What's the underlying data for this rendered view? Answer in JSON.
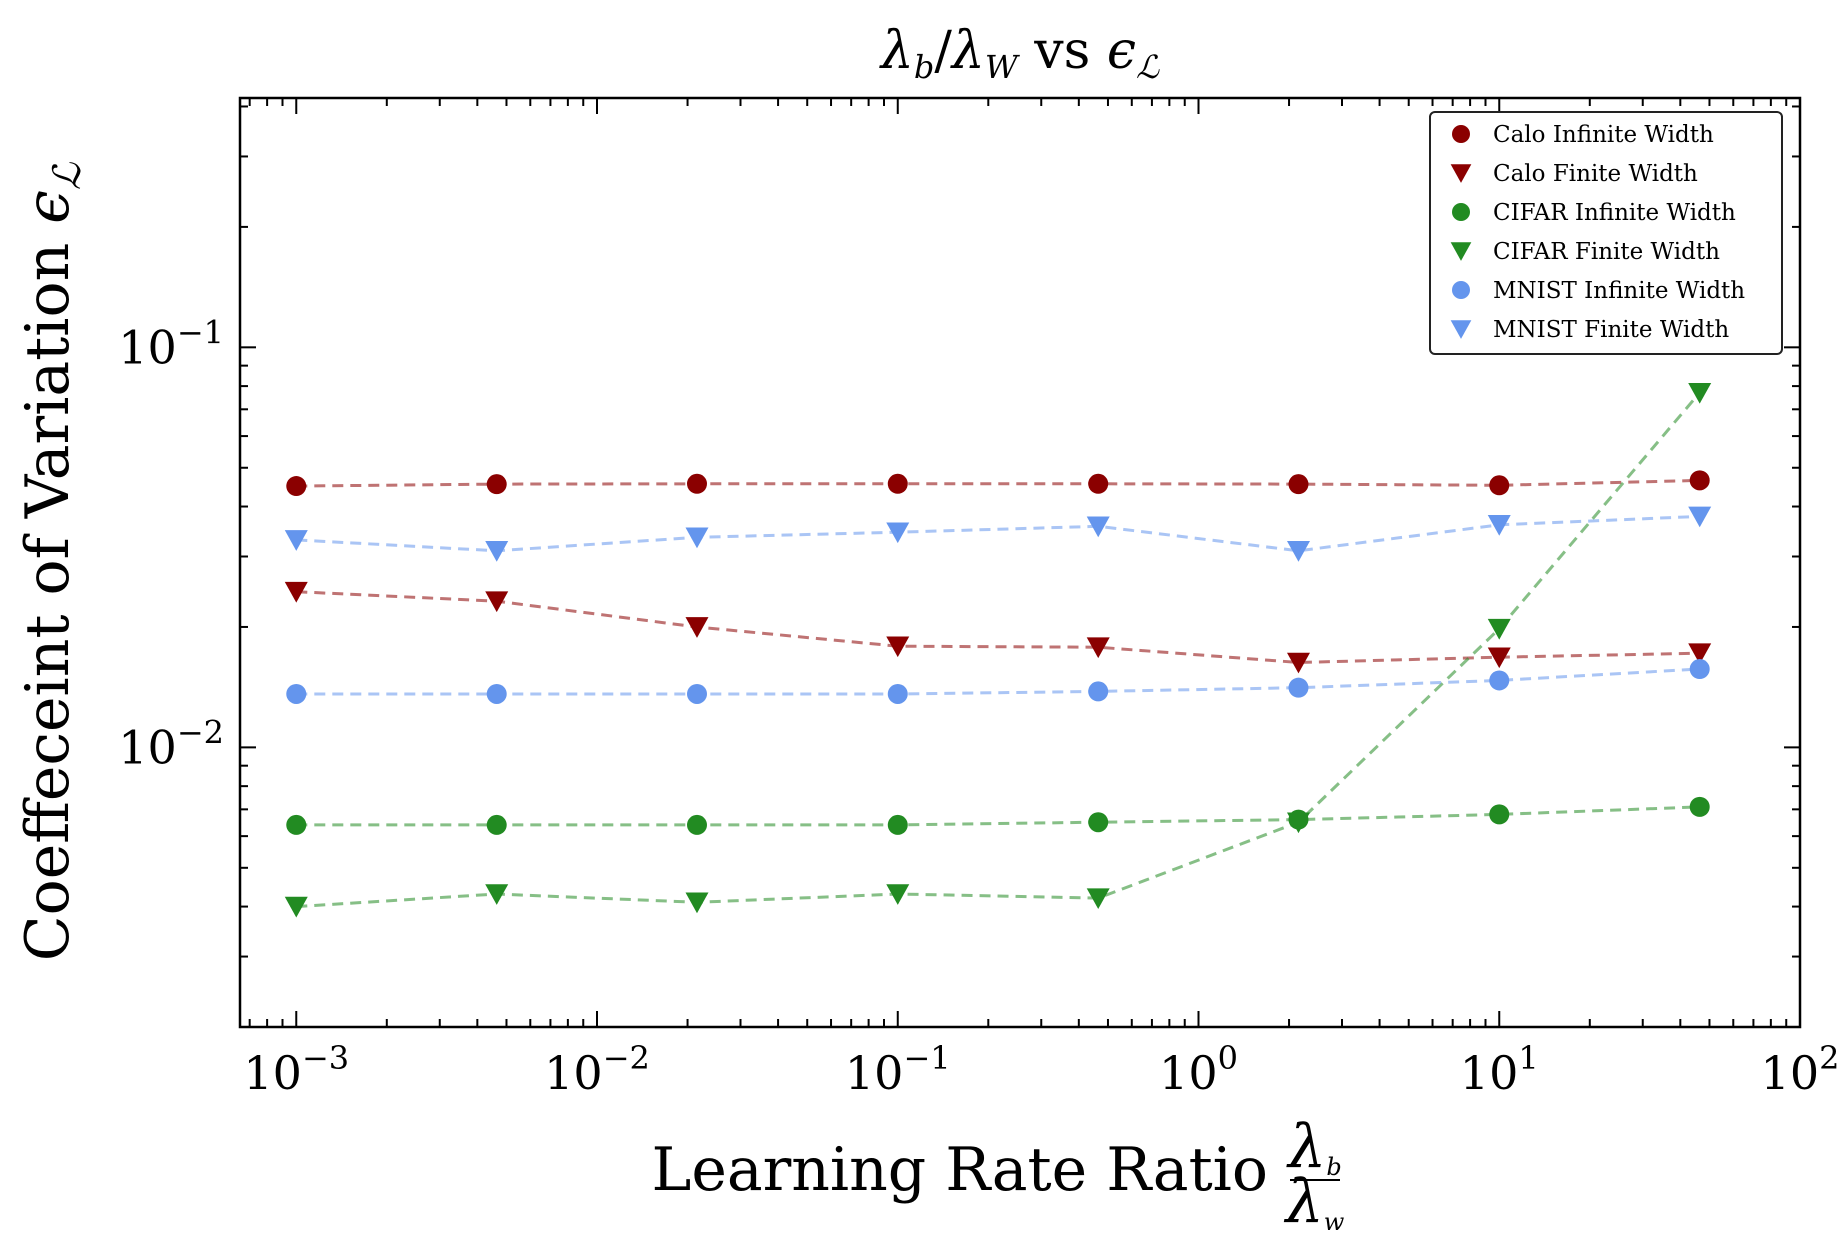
{
  "chart_data": {
    "type": "line",
    "title": "λb/λW vs ϵℒ",
    "xlabel": "Learning Rate Ratio λb/λw",
    "ylabel": "Coeffeceint of Variation ϵℒ",
    "xscale": "log",
    "yscale": "log",
    "xlim": [
      0.00065,
      100
    ],
    "ylim": [
      0.002,
      0.42
    ],
    "x_ticks": [
      0.001,
      0.01,
      0.1,
      1,
      10,
      100
    ],
    "x_tick_labels": [
      {
        "base": "10",
        "exp": "−3"
      },
      {
        "base": "10",
        "exp": "−2"
      },
      {
        "base": "10",
        "exp": "−1"
      },
      {
        "base": "10",
        "exp": "0"
      },
      {
        "base": "10",
        "exp": "1"
      },
      {
        "base": "10",
        "exp": "2"
      }
    ],
    "y_ticks": [
      0.01,
      0.1
    ],
    "y_tick_labels": [
      {
        "base": "10",
        "exp": "−2"
      },
      {
        "base": "10",
        "exp": "−1"
      }
    ],
    "x": [
      0.001,
      0.00464,
      0.0215,
      0.1,
      0.464,
      2.15,
      10,
      46.4
    ],
    "legend_position": "top-right",
    "grid": false,
    "series": [
      {
        "name": "Calo Infinite Width",
        "marker": "circle",
        "color": "#8b0000",
        "values": [
          0.045,
          0.0455,
          0.0456,
          0.0456,
          0.0456,
          0.0455,
          0.0452,
          0.0465
        ]
      },
      {
        "name": "Calo Finite Width",
        "marker": "triangle-down",
        "color": "#8b0000",
        "values": [
          0.0245,
          0.0232,
          0.02,
          0.0179,
          0.0178,
          0.0163,
          0.0168,
          0.0172
        ]
      },
      {
        "name": "CIFAR Infinite Width",
        "marker": "circle",
        "color": "#228b22",
        "values": [
          0.0064,
          0.0064,
          0.0064,
          0.0064,
          0.0065,
          0.0066,
          0.0068,
          0.0071
        ]
      },
      {
        "name": "CIFAR Finite Width",
        "marker": "triangle-down",
        "color": "#228b22",
        "values": [
          0.004,
          0.0043,
          0.0041,
          0.0043,
          0.0042,
          0.0065,
          0.0198,
          0.077
        ]
      },
      {
        "name": "MNIST Infinite Width",
        "marker": "circle",
        "color": "#6495ed",
        "values": [
          0.0136,
          0.0136,
          0.0136,
          0.0136,
          0.0138,
          0.0141,
          0.0147,
          0.0157
        ]
      },
      {
        "name": "MNIST Finite Width",
        "marker": "triangle-down",
        "color": "#6495ed",
        "values": [
          0.033,
          0.031,
          0.0335,
          0.0345,
          0.0357,
          0.031,
          0.036,
          0.0378
        ]
      }
    ]
  }
}
